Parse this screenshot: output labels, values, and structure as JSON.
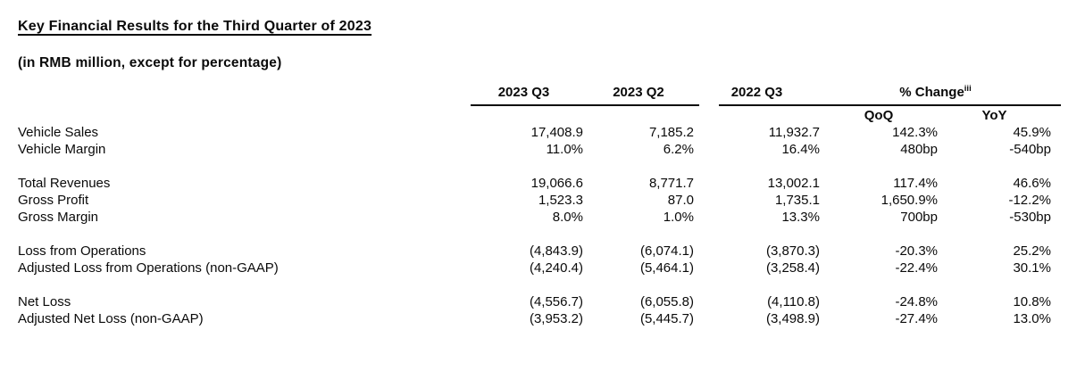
{
  "page": {
    "title": "Key Financial Results for the Third Quarter of 2023",
    "subtitle": "(in RMB million, except for percentage)"
  },
  "colors": {
    "text": "#0a0a0a",
    "rule": "#0a0a0a",
    "background": "#ffffff"
  },
  "table": {
    "period_headers": [
      "2023 Q3",
      "2023 Q2",
      "2022 Q3"
    ],
    "pct_change": {
      "label": "% Change",
      "superscript": "iii"
    },
    "change_headers": [
      "QoQ",
      "YoY"
    ],
    "groups": [
      {
        "rows": [
          {
            "label": "Vehicle Sales",
            "values": [
              "17,408.9",
              "7,185.2",
              "11,932.7",
              "142.3%",
              "45.9%"
            ]
          },
          {
            "label": "Vehicle Margin",
            "values": [
              "11.0%",
              "6.2%",
              "16.4%",
              "480bp",
              "-540bp"
            ]
          }
        ]
      },
      {
        "rows": [
          {
            "label": "Total Revenues",
            "values": [
              "19,066.6",
              "8,771.7",
              "13,002.1",
              "117.4%",
              "46.6%"
            ]
          },
          {
            "label": "Gross Profit",
            "values": [
              "1,523.3",
              "87.0",
              "1,735.1",
              "1,650.9%",
              "-12.2%"
            ]
          },
          {
            "label": "Gross Margin",
            "values": [
              "8.0%",
              "1.0%",
              "13.3%",
              "700bp",
              "-530bp"
            ]
          }
        ]
      },
      {
        "rows": [
          {
            "label": "Loss from Operations",
            "values": [
              "(4,843.9)",
              "(6,074.1)",
              "(3,870.3)",
              "-20.3%",
              "25.2%"
            ]
          },
          {
            "label": "Adjusted Loss from Operations (non-GAAP)",
            "values": [
              "(4,240.4)",
              "(5,464.1)",
              "(3,258.4)",
              "-22.4%",
              "30.1%"
            ]
          }
        ]
      },
      {
        "rows": [
          {
            "label": "Net Loss",
            "values": [
              "(4,556.7)",
              "(6,055.8)",
              "(4,110.8)",
              "-24.8%",
              "10.8%"
            ]
          },
          {
            "label": "Adjusted Net Loss (non-GAAP)",
            "values": [
              "(3,953.2)",
              "(5,445.7)",
              "(3,498.9)",
              "-27.4%",
              "13.0%"
            ]
          }
        ]
      }
    ]
  }
}
